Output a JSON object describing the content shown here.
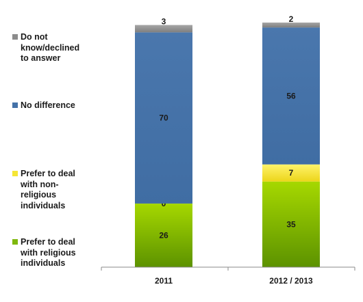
{
  "chart_data": {
    "type": "bar",
    "stacked": true,
    "categories": [
      "2011",
      "2012 / 2013"
    ],
    "series": [
      {
        "name": "Prefer to deal with religious individuals",
        "values": [
          26,
          35
        ],
        "color": "#7fb80e"
      },
      {
        "name": "Prefer to deal with non-religious individuals",
        "values": [
          0,
          7
        ],
        "color": "#f5e636"
      },
      {
        "name": "No difference",
        "values": [
          70,
          56
        ],
        "color": "#4472a8"
      },
      {
        "name": "Do not know/declined to answer",
        "values": [
          3,
          2
        ],
        "color": "#8c8c8c"
      }
    ],
    "ylim": [
      0,
      100
    ],
    "legend_position": "left",
    "grid": false
  },
  "legend": [
    {
      "label": "Do not know/declined to answer",
      "color": "#8c8c8c"
    },
    {
      "label": "No difference",
      "color": "#4472a8"
    },
    {
      "label": "Prefer to deal with non-religious individuals",
      "color": "#f5e636"
    },
    {
      "label": "Prefer to deal with religious individuals",
      "color": "#7fb80e"
    }
  ]
}
